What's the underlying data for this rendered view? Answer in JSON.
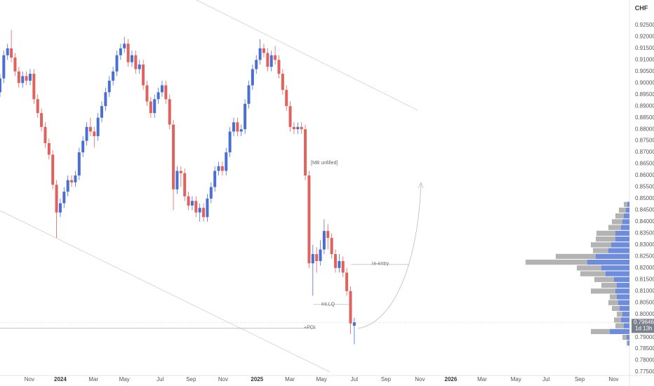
{
  "chart_data": {
    "type": "candlestick",
    "currency": "CHF",
    "up_color": "#4a6fd0",
    "down_color": "#e0625f",
    "grid": false,
    "xlim": [
      0,
      167
    ],
    "xticks": [
      {
        "value": 7.8,
        "label": "Nov"
      },
      {
        "value": 16.0,
        "label": "2024"
      },
      {
        "value": 24.8,
        "label": "Mar"
      },
      {
        "value": 33.0,
        "label": "May"
      },
      {
        "value": 42.5,
        "label": "Jul"
      },
      {
        "value": 50.7,
        "label": "Sep"
      },
      {
        "value": 59.2,
        "label": "Nov"
      },
      {
        "value": 68.2,
        "label": "2025"
      },
      {
        "value": 76.9,
        "label": "Mar"
      },
      {
        "value": 85.3,
        "label": "May"
      },
      {
        "value": 94.0,
        "label": "Jul"
      },
      {
        "value": 102.4,
        "label": "Sep"
      },
      {
        "value": 111.4,
        "label": "Nov"
      },
      {
        "value": 119.6,
        "label": "2026"
      },
      {
        "value": 127.9,
        "label": "Mar"
      },
      {
        "value": 136.9,
        "label": "May"
      },
      {
        "value": 144.9,
        "label": "Jul"
      },
      {
        "value": 153.8,
        "label": "Sep"
      },
      {
        "value": 162.8,
        "label": "Nov"
      }
    ],
    "ylim": [
      0.7735,
      0.9359
    ],
    "yticks": [
      {
        "value": 0.775,
        "label": "0.77500"
      },
      {
        "value": 0.78,
        "label": "0.78000"
      },
      {
        "value": 0.785,
        "label": "0.78500"
      },
      {
        "value": 0.79,
        "label": "0.79000"
      },
      {
        "value": 0.795,
        "label": "0.79500"
      },
      {
        "value": 0.8,
        "label": "0.80000"
      },
      {
        "value": 0.805,
        "label": "0.80500"
      },
      {
        "value": 0.81,
        "label": "0.81000"
      },
      {
        "value": 0.815,
        "label": "0.81500"
      },
      {
        "value": 0.82,
        "label": "0.82000"
      },
      {
        "value": 0.825,
        "label": "0.82500"
      },
      {
        "value": 0.83,
        "label": "0.83000"
      },
      {
        "value": 0.835,
        "label": "0.83500"
      },
      {
        "value": 0.84,
        "label": "0.84000"
      },
      {
        "value": 0.845,
        "label": "0.84500"
      },
      {
        "value": 0.85,
        "label": "0.85000"
      },
      {
        "value": 0.855,
        "label": "0.85500"
      },
      {
        "value": 0.86,
        "label": "0.86000"
      },
      {
        "value": 0.865,
        "label": "0.86500"
      },
      {
        "value": 0.87,
        "label": "0.87000"
      },
      {
        "value": 0.875,
        "label": "0.87500"
      },
      {
        "value": 0.88,
        "label": "0.88000"
      },
      {
        "value": 0.885,
        "label": "0.88500"
      },
      {
        "value": 0.89,
        "label": "0.89000"
      },
      {
        "value": 0.895,
        "label": "0.89500"
      },
      {
        "value": 0.9,
        "label": "0.90000"
      },
      {
        "value": 0.905,
        "label": "0.90500"
      },
      {
        "value": 0.91,
        "label": "0.91000"
      },
      {
        "value": 0.915,
        "label": "0.91500"
      },
      {
        "value": 0.92,
        "label": "0.92000"
      },
      {
        "value": 0.925,
        "label": "0.92500"
      }
    ],
    "open": [
      0.896,
      0.902,
      0.912,
      0.915,
      0.911,
      0.905,
      0.9,
      0.903,
      0.901,
      0.904,
      0.893,
      0.887,
      0.881,
      0.874,
      0.869,
      0.856,
      0.844,
      0.848,
      0.853,
      0.858,
      0.857,
      0.86,
      0.87,
      0.875,
      0.881,
      0.879,
      0.877,
      0.885,
      0.89,
      0.896,
      0.901,
      0.905,
      0.912,
      0.915,
      0.917,
      0.909,
      0.912,
      0.906,
      0.908,
      0.899,
      0.892,
      0.887,
      0.893,
      0.896,
      0.899,
      0.893,
      0.882,
      0.854,
      0.862,
      0.861,
      0.851,
      0.847,
      0.849,
      0.844,
      0.846,
      0.842,
      0.85,
      0.855,
      0.862,
      0.864,
      0.862,
      0.87,
      0.879,
      0.883,
      0.879,
      0.88,
      0.891,
      0.899,
      0.906,
      0.91,
      0.915,
      0.913,
      0.907,
      0.912,
      0.91,
      0.904,
      0.897,
      0.89,
      0.881,
      0.88,
      0.881,
      0.88,
      0.86,
      0.822,
      0.826,
      0.823,
      0.828,
      0.836,
      0.833,
      0.826,
      0.82,
      0.823,
      0.818,
      0.81,
      0.795
    ],
    "high": [
      0.904,
      0.914,
      0.917,
      0.923,
      0.913,
      0.907,
      0.905,
      0.905,
      0.906,
      0.906,
      0.895,
      0.889,
      0.883,
      0.876,
      0.871,
      0.858,
      0.85,
      0.855,
      0.86,
      0.86,
      0.862,
      0.872,
      0.877,
      0.883,
      0.885,
      0.881,
      0.887,
      0.892,
      0.898,
      0.903,
      0.907,
      0.914,
      0.917,
      0.92,
      0.919,
      0.914,
      0.914,
      0.91,
      0.91,
      0.901,
      0.894,
      0.895,
      0.898,
      0.901,
      0.901,
      0.895,
      0.884,
      0.864,
      0.864,
      0.863,
      0.853,
      0.851,
      0.851,
      0.848,
      0.848,
      0.852,
      0.857,
      0.864,
      0.866,
      0.866,
      0.872,
      0.881,
      0.885,
      0.885,
      0.882,
      0.893,
      0.901,
      0.908,
      0.912,
      0.919,
      0.917,
      0.915,
      0.914,
      0.916,
      0.912,
      0.906,
      0.899,
      0.892,
      0.883,
      0.883,
      0.883,
      0.882,
      0.862,
      0.83,
      0.829,
      0.832,
      0.841,
      0.839,
      0.835,
      0.828,
      0.826,
      0.825,
      0.82,
      0.812,
      0.7985
    ],
    "low": [
      0.894,
      0.9,
      0.91,
      0.909,
      0.903,
      0.898,
      0.898,
      0.899,
      0.899,
      0.891,
      0.885,
      0.879,
      0.872,
      0.867,
      0.854,
      0.833,
      0.842,
      0.846,
      0.851,
      0.855,
      0.855,
      0.858,
      0.868,
      0.873,
      0.877,
      0.872,
      0.875,
      0.883,
      0.888,
      0.894,
      0.899,
      0.903,
      0.91,
      0.913,
      0.907,
      0.907,
      0.904,
      0.904,
      0.897,
      0.89,
      0.885,
      0.885,
      0.891,
      0.894,
      0.891,
      0.88,
      0.845,
      0.852,
      0.855,
      0.849,
      0.845,
      0.845,
      0.842,
      0.84,
      0.84,
      0.84,
      0.848,
      0.853,
      0.86,
      0.86,
      0.86,
      0.868,
      0.877,
      0.877,
      0.877,
      0.878,
      0.889,
      0.897,
      0.904,
      0.908,
      0.911,
      0.905,
      0.905,
      0.908,
      0.902,
      0.895,
      0.888,
      0.879,
      0.878,
      0.878,
      0.878,
      0.858,
      0.82,
      0.808,
      0.818,
      0.821,
      0.826,
      0.828,
      0.824,
      0.818,
      0.818,
      0.816,
      0.808,
      0.7915,
      0.787
    ],
    "close": [
      0.902,
      0.912,
      0.915,
      0.911,
      0.905,
      0.9,
      0.903,
      0.901,
      0.904,
      0.893,
      0.887,
      0.881,
      0.874,
      0.869,
      0.856,
      0.844,
      0.848,
      0.853,
      0.858,
      0.857,
      0.86,
      0.87,
      0.875,
      0.881,
      0.879,
      0.877,
      0.885,
      0.89,
      0.896,
      0.901,
      0.905,
      0.912,
      0.915,
      0.917,
      0.909,
      0.912,
      0.906,
      0.908,
      0.899,
      0.892,
      0.887,
      0.893,
      0.896,
      0.899,
      0.893,
      0.882,
      0.854,
      0.862,
      0.861,
      0.851,
      0.847,
      0.849,
      0.844,
      0.846,
      0.842,
      0.85,
      0.855,
      0.862,
      0.864,
      0.862,
      0.87,
      0.879,
      0.883,
      0.879,
      0.88,
      0.891,
      0.899,
      0.906,
      0.91,
      0.915,
      0.913,
      0.907,
      0.912,
      0.91,
      0.904,
      0.897,
      0.89,
      0.881,
      0.88,
      0.881,
      0.88,
      0.86,
      0.822,
      0.826,
      0.823,
      0.828,
      0.836,
      0.833,
      0.826,
      0.82,
      0.823,
      0.818,
      0.81,
      0.796,
      0.7965
    ],
    "last_price": {
      "value": 0.79646,
      "label": "0.79646"
    },
    "countdown": "1d 13h",
    "annotation": "[MB unfilled]",
    "levels": [
      {
        "label": "re-entry",
        "price": 0.8215
      },
      {
        "label": "Int.LQ",
        "price": 0.8042
      },
      {
        "label": "+POI",
        "price": 0.7939
      }
    ],
    "volume_profile": {
      "up_color": "#4a6fd0",
      "down_color": "#9a9a9a",
      "prices": [
        0.7875,
        0.79,
        0.7925,
        0.795,
        0.7975,
        0.8,
        0.8025,
        0.805,
        0.8075,
        0.81,
        0.8125,
        0.815,
        0.8175,
        0.82,
        0.8225,
        0.825,
        0.8275,
        0.83,
        0.8325,
        0.835,
        0.8375,
        0.84,
        0.8425,
        0.845,
        0.8475
      ],
      "up": [
        2,
        4,
        28,
        8,
        12,
        10,
        14,
        16,
        18,
        20,
        18,
        22,
        34,
        40,
        60,
        48,
        30,
        26,
        20,
        20,
        12,
        10,
        8,
        5,
        3
      ],
      "down": [
        2,
        6,
        27,
        12,
        10,
        8,
        11,
        14,
        10,
        35,
        22,
        28,
        36,
        35,
        88,
        57,
        22,
        29,
        28,
        27,
        18,
        15,
        12,
        10,
        5
      ]
    }
  }
}
